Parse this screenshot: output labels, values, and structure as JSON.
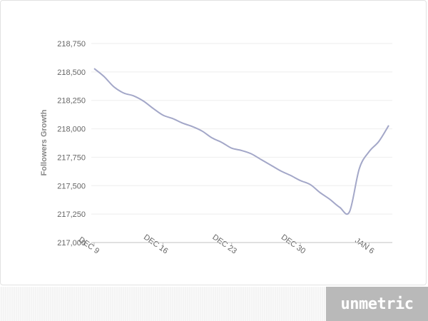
{
  "chart_data": {
    "type": "line",
    "title": "",
    "xlabel": "",
    "ylabel": "Followers Growth",
    "ylim": [
      217000,
      218750
    ],
    "yticks": [
      217000,
      217250,
      217500,
      217750,
      218000,
      218250,
      218500,
      218750
    ],
    "ytick_labels": [
      "217,000",
      "217,250",
      "217,500",
      "217,750",
      "218,000",
      "218,250",
      "218,500",
      "218,750"
    ],
    "xticks": [
      "DEC 9",
      "DEC 16",
      "DEC 23",
      "DEC 30",
      "JAN 6"
    ],
    "grid": true,
    "legend": "none",
    "line_color": "#a3a7c8",
    "series": [
      {
        "name": "",
        "x": [
          "Dec 9",
          "Dec 10",
          "Dec 11",
          "Dec 12",
          "Dec 13",
          "Dec 14",
          "Dec 15",
          "Dec 16",
          "Dec 17",
          "Dec 18",
          "Dec 19",
          "Dec 20",
          "Dec 21",
          "Dec 22",
          "Dec 23",
          "Dec 24",
          "Dec 25",
          "Dec 26",
          "Dec 27",
          "Dec 28",
          "Dec 29",
          "Dec 30",
          "Dec 31",
          "Jan 1",
          "Jan 2",
          "Jan 3",
          "Jan 4",
          "Jan 5",
          "Jan 6",
          "Jan 7",
          "Jan 8"
        ],
        "values": [
          218530,
          218460,
          218370,
          218315,
          218290,
          218245,
          218180,
          218120,
          218090,
          218050,
          218020,
          217980,
          217920,
          217880,
          217830,
          217810,
          217780,
          217730,
          217680,
          217630,
          217590,
          217545,
          217510,
          217440,
          217380,
          217310,
          217270,
          217650,
          217800,
          217890,
          218030
        ]
      }
    ]
  },
  "footer": {
    "brand": "unmetric"
  }
}
